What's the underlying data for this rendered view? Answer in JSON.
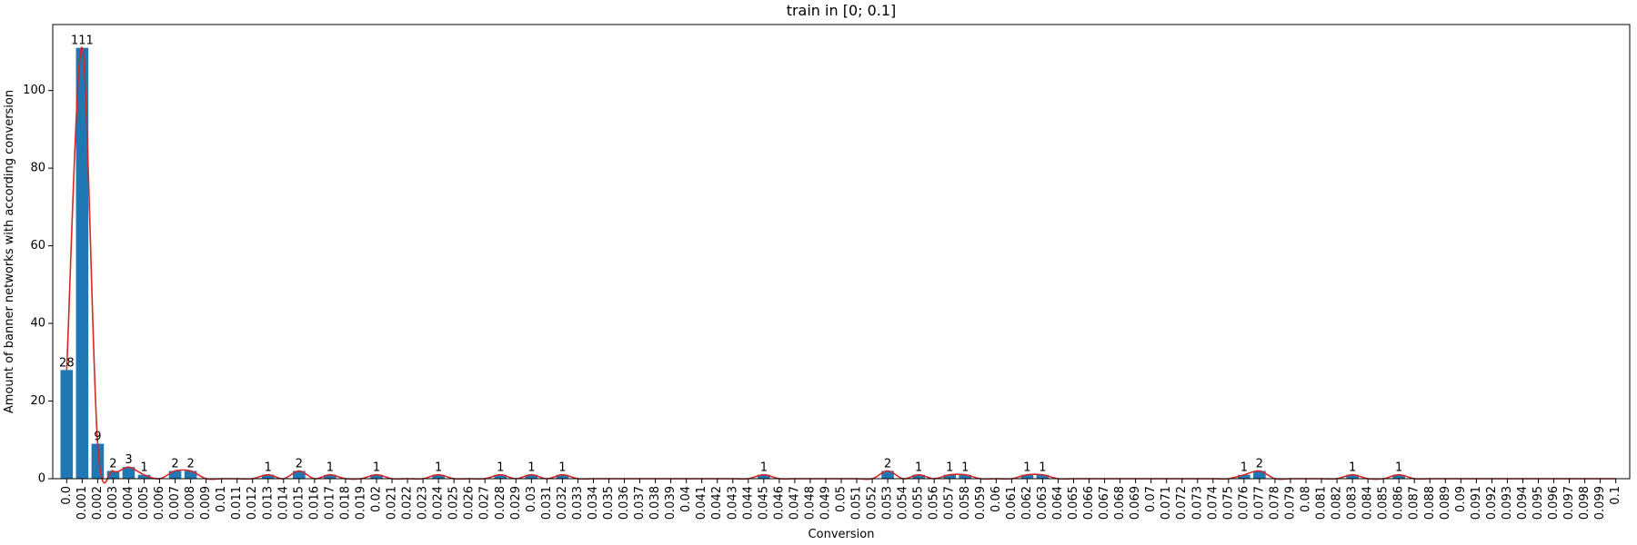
{
  "chart_data": {
    "type": "bar",
    "title": "train in [0; 0.1]",
    "xlabel": "Conversion",
    "ylabel": "Amount of banner networks with according conversion",
    "categories": [
      "0.0",
      "0.001",
      "0.002",
      "0.003",
      "0.004",
      "0.005",
      "0.006",
      "0.007",
      "0.008",
      "0.009",
      "0.01",
      "0.011",
      "0.012",
      "0.013",
      "0.014",
      "0.015",
      "0.016",
      "0.017",
      "0.018",
      "0.019",
      "0.02",
      "0.021",
      "0.022",
      "0.023",
      "0.024",
      "0.025",
      "0.026",
      "0.027",
      "0.028",
      "0.029",
      "0.03",
      "0.031",
      "0.032",
      "0.033",
      "0.034",
      "0.035",
      "0.036",
      "0.037",
      "0.038",
      "0.039",
      "0.04",
      "0.041",
      "0.042",
      "0.043",
      "0.044",
      "0.045",
      "0.046",
      "0.047",
      "0.048",
      "0.049",
      "0.05",
      "0.051",
      "0.052",
      "0.053",
      "0.054",
      "0.055",
      "0.056",
      "0.057",
      "0.058",
      "0.059",
      "0.06",
      "0.061",
      "0.062",
      "0.063",
      "0.064",
      "0.065",
      "0.066",
      "0.067",
      "0.068",
      "0.069",
      "0.07",
      "0.071",
      "0.072",
      "0.073",
      "0.074",
      "0.075",
      "0.076",
      "0.077",
      "0.078",
      "0.079",
      "0.08",
      "0.081",
      "0.082",
      "0.083",
      "0.084",
      "0.085",
      "0.086",
      "0.087",
      "0.088",
      "0.089",
      "0.09",
      "0.091",
      "0.092",
      "0.093",
      "0.094",
      "0.095",
      "0.096",
      "0.097",
      "0.098",
      "0.099",
      "0.1"
    ],
    "values": [
      28,
      111,
      9,
      2,
      3,
      1,
      0,
      2,
      2,
      0,
      0,
      0,
      0,
      1,
      0,
      2,
      0,
      1,
      0,
      0,
      1,
      0,
      0,
      0,
      1,
      0,
      0,
      0,
      1,
      0,
      1,
      0,
      1,
      0,
      0,
      0,
      0,
      0,
      0,
      0,
      0,
      0,
      0,
      0,
      0,
      1,
      0,
      0,
      0,
      0,
      0,
      0,
      0,
      2,
      0,
      1,
      0,
      1,
      1,
      0,
      0,
      0,
      1,
      1,
      0,
      0,
      0,
      0,
      0,
      0,
      0,
      0,
      0,
      0,
      0,
      0,
      1,
      2,
      0,
      0,
      0,
      0,
      0,
      1,
      0,
      0,
      1,
      0,
      0,
      0,
      0,
      0,
      0,
      0,
      0,
      0,
      0,
      0,
      0,
      0,
      0
    ],
    "ylim": [
      0,
      117
    ],
    "yticks": [
      0,
      20,
      40,
      60,
      80,
      100
    ],
    "grid": false,
    "legend": "none",
    "bar_color": "#1f77b4",
    "line_color": "#d62728"
  }
}
